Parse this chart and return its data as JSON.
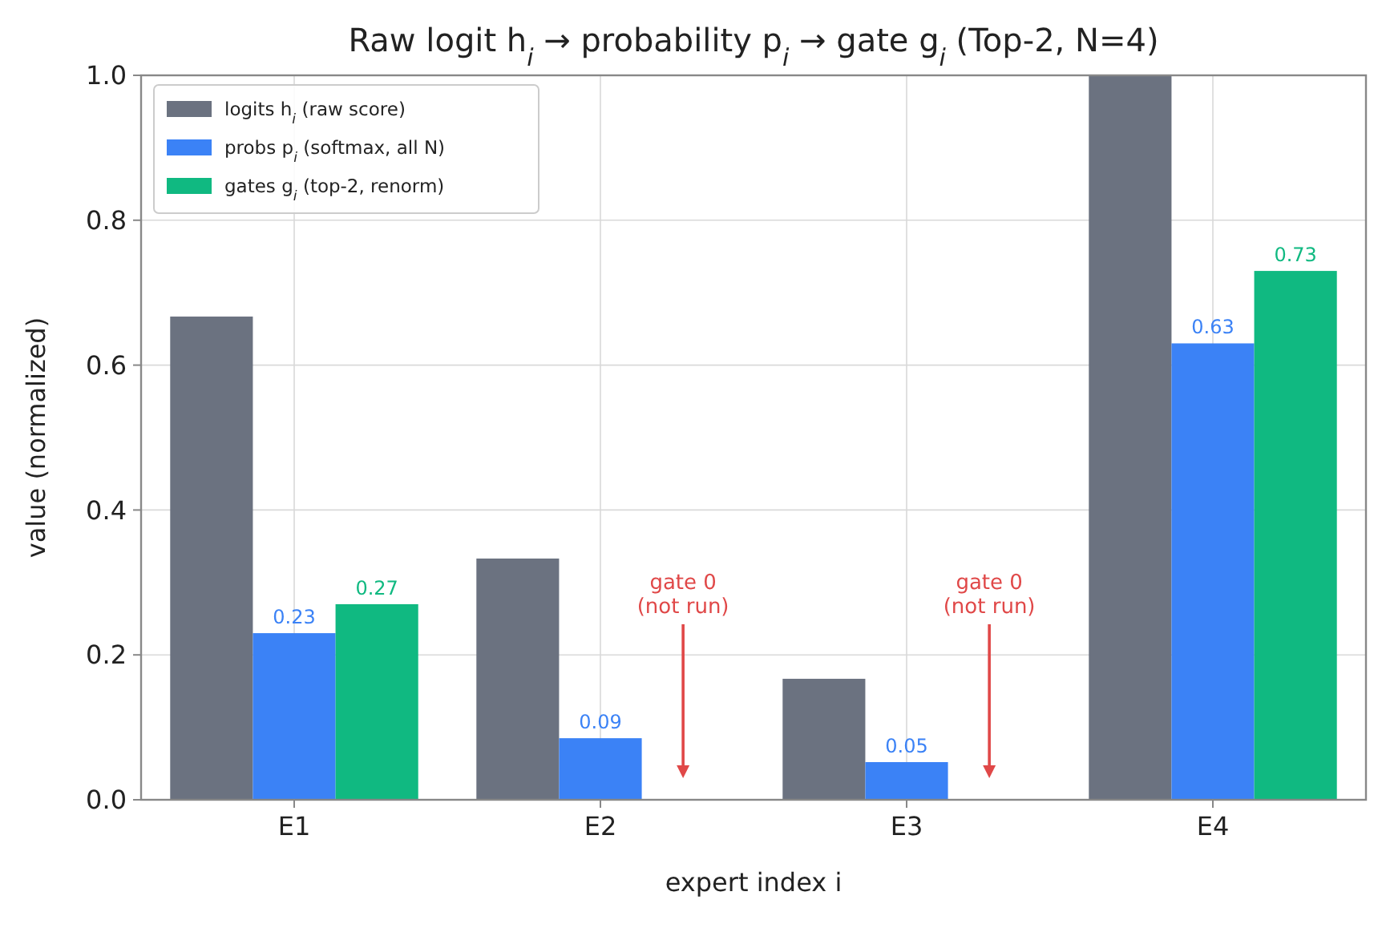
{
  "chart_data": {
    "type": "bar",
    "title": "Raw logit h$_{i}$  →  probability p$_{i}$  →  gate g$_{i}$ (Top-2, N=4)",
    "xlabel": "expert index i",
    "ylabel": "value (normalized)",
    "categories": [
      "E1",
      "E2",
      "E3",
      "E4"
    ],
    "series": [
      {
        "name": "logits h$_{i}$ (raw score)",
        "color": "#6b7280",
        "values": [
          0.667,
          0.333,
          0.167,
          1.0
        ]
      },
      {
        "name": "probs p$_{i}$ (softmax, all N)",
        "color": "#3b82f6",
        "values": [
          0.23,
          0.085,
          0.052,
          0.63
        ],
        "value_labels": [
          "0.23",
          "0.09",
          "0.05",
          "0.63"
        ]
      },
      {
        "name": "gates g$_{i}$ (top-2, renorm)",
        "color": "#10b981",
        "values": [
          0.27,
          0,
          0,
          0.73
        ],
        "value_labels": [
          "0.27",
          null,
          null,
          "0.73"
        ]
      }
    ],
    "annotations": [
      "gate 0\n(not run)",
      "gate 0\n(not run)"
    ],
    "ylim": [
      0,
      1
    ],
    "yticks": [
      {
        "value": 0,
        "label": "0.0"
      },
      {
        "value": 0.2,
        "label": "0.2"
      },
      {
        "value": 0.4,
        "label": "0.4"
      },
      {
        "value": 0.6,
        "label": "0.6"
      },
      {
        "value": 0.8,
        "label": "0.8"
      },
      {
        "value": 1,
        "label": "1.0"
      }
    ],
    "grid": true,
    "legend": "top left"
  }
}
